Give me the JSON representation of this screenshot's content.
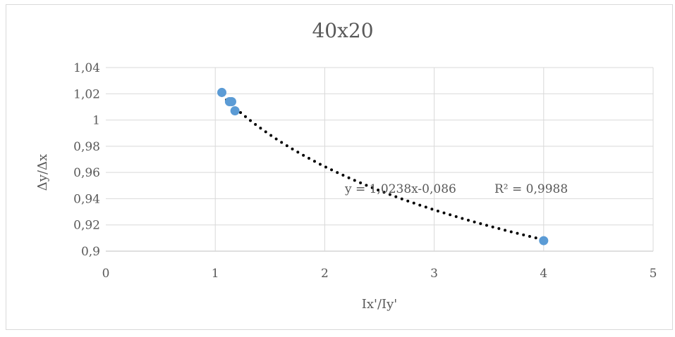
{
  "chart_data": {
    "type": "scatter",
    "title": "40x20",
    "xlabel": "Ix'/Iy'",
    "ylabel": "Δy/Δx",
    "xlim": [
      0,
      5
    ],
    "ylim": [
      0.9,
      1.04
    ],
    "x_ticks": [
      "0",
      "1",
      "2",
      "3",
      "4",
      "5"
    ],
    "y_ticks": [
      "0,9",
      "0,92",
      "0,94",
      "0,96",
      "0,98",
      "1",
      "1,02",
      "1,04"
    ],
    "grid": true,
    "marker_color": "#5b9bd5",
    "trendline_color": "#000000",
    "series": [
      {
        "x": [
          1.06,
          1.13,
          1.15,
          1.18,
          4.0
        ],
        "y": [
          1.021,
          1.014,
          1.014,
          1.007,
          0.908
        ]
      }
    ],
    "trendline": {
      "type": "power",
      "a": 1.0238,
      "b": -0.086,
      "equation_label": "y = 1,0238x-0,086",
      "r2_label": "R² = 0,9988"
    }
  }
}
